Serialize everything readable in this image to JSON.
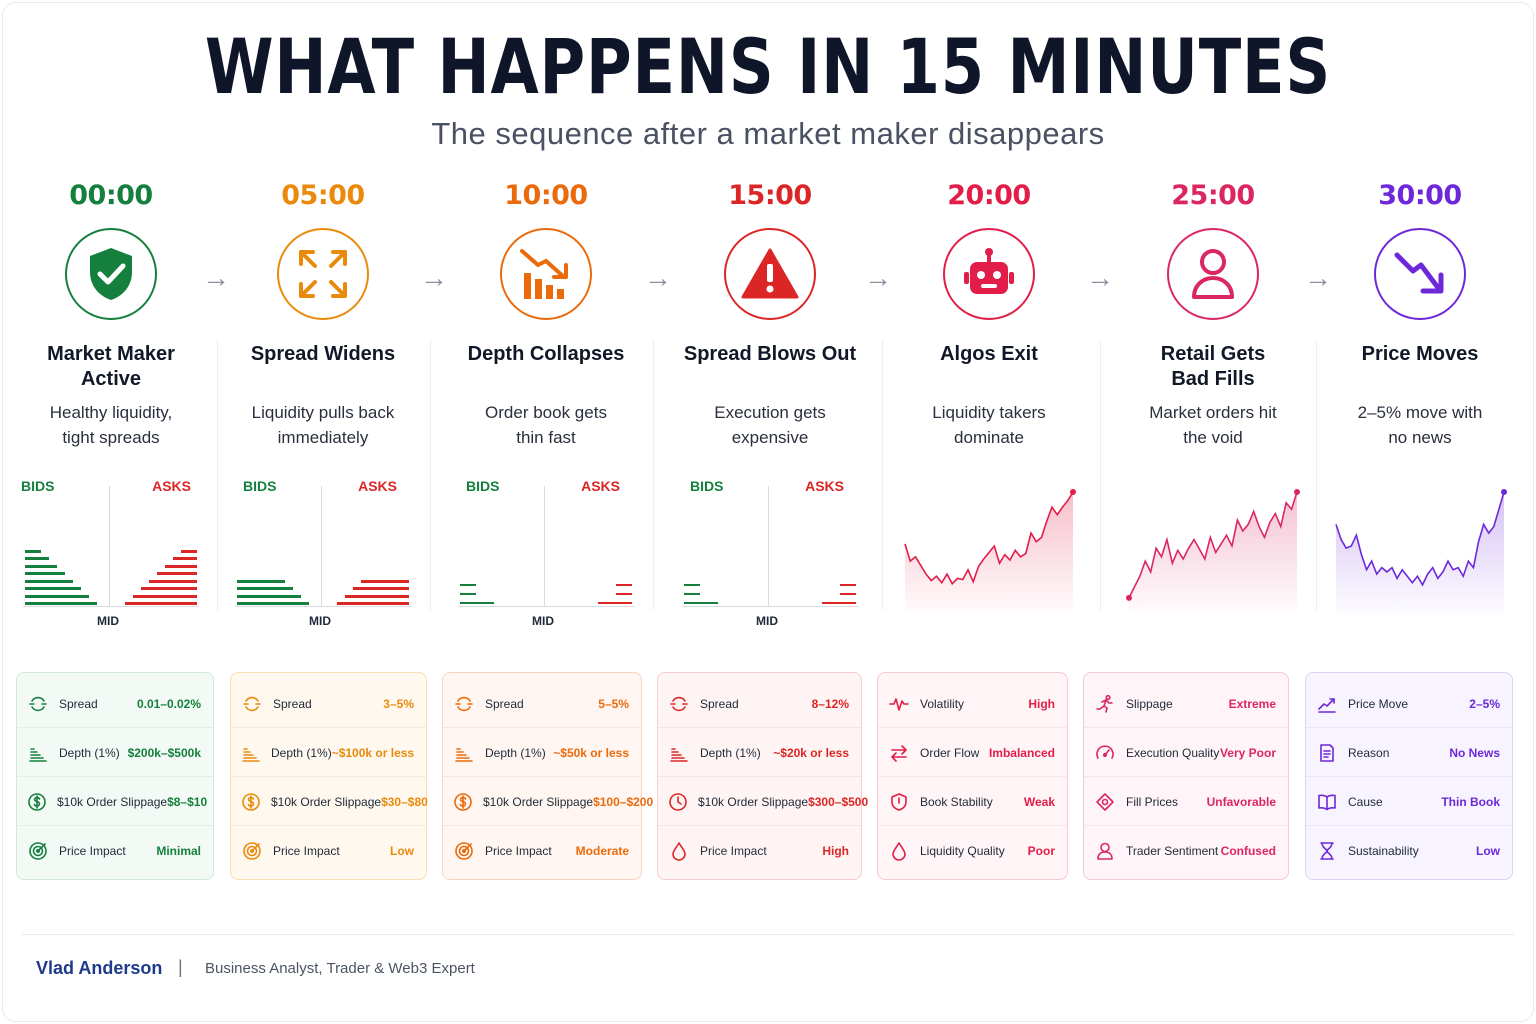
{
  "header": {
    "title": "WHAT HAPPENS IN 15 MINUTES",
    "subtitle": "The sequence after a market maker disappears"
  },
  "depth_labels": {
    "bids": "BIDS",
    "asks": "ASKS",
    "mid": "MID"
  },
  "stages": [
    {
      "time": "00:00",
      "color": "#15803d",
      "icon": "shield-check-icon",
      "title_line1": "Market Maker",
      "title_line2": "Active",
      "desc_line1": "Healthy liquidity,",
      "desc_line2": "tight spreads",
      "book_depth": 8,
      "metrics": [
        {
          "icon": "spread-icon",
          "label": "Spread",
          "value": "0.01–0.02%"
        },
        {
          "icon": "depth-icon",
          "label": "Depth (1%)",
          "value": "$200k–$500k"
        },
        {
          "icon": "dollar-icon",
          "label": "$10k Order Slippage",
          "value": "$8–$10"
        },
        {
          "icon": "target-icon",
          "label": "Price Impact",
          "value": "Minimal"
        }
      ]
    },
    {
      "time": "05:00",
      "color": "#ea8a0c",
      "icon": "expand-arrows-icon",
      "title_line1": "Spread Widens",
      "title_line2": "",
      "desc_line1": "Liquidity pulls back",
      "desc_line2": "immediately",
      "book_depth": 4,
      "metrics": [
        {
          "icon": "spread-icon",
          "label": "Spread",
          "value": "3–5%"
        },
        {
          "icon": "depth-icon",
          "label": "Depth (1%)",
          "value": "~$100k or less"
        },
        {
          "icon": "dollar-icon",
          "label": "$10k Order Slippage",
          "value": "$30–$80"
        },
        {
          "icon": "target-icon",
          "label": "Price Impact",
          "value": "Low"
        }
      ]
    },
    {
      "time": "10:00",
      "color": "#ea6a0c",
      "icon": "falling-bars-icon",
      "title_line1": "Depth Collapses",
      "title_line2": "",
      "desc_line1": "Order book gets",
      "desc_line2": "thin fast",
      "book_depth": 3,
      "metrics": [
        {
          "icon": "spread-icon",
          "label": "Spread",
          "value": "5–5%"
        },
        {
          "icon": "depth-icon",
          "label": "Depth (1%)",
          "value": "~$50k or less"
        },
        {
          "icon": "dollar-icon",
          "label": "$10k Order Slippage",
          "value": "$100–$200"
        },
        {
          "icon": "target-icon",
          "label": "Price Impact",
          "value": "Moderate"
        }
      ]
    },
    {
      "time": "15:00",
      "color": "#dc2626",
      "icon": "warning-icon",
      "title_line1": "Spread Blows Out",
      "title_line2": "",
      "desc_line1": "Execution gets",
      "desc_line2": "expensive",
      "book_depth": 3,
      "metrics": [
        {
          "icon": "spread-icon",
          "label": "Spread",
          "value": "8–12%"
        },
        {
          "icon": "depth-icon",
          "label": "Depth (1%)",
          "value": "~$20k or less"
        },
        {
          "icon": "clock-icon",
          "label": "$10k Order Slippage",
          "value": "$300–$500"
        },
        {
          "icon": "drop-icon",
          "label": "Price Impact",
          "value": "High"
        }
      ]
    },
    {
      "time": "20:00",
      "color": "#e11d48",
      "icon": "robot-icon",
      "title_line1": "Algos Exit",
      "title_line2": "",
      "desc_line1": "Liquidity takers",
      "desc_line2": "dominate",
      "sparkline": [
        0.52,
        0.36,
        0.4,
        0.32,
        0.24,
        0.18,
        0.22,
        0.16,
        0.24,
        0.15,
        0.2,
        0.19,
        0.28,
        0.17,
        0.31,
        0.38,
        0.44,
        0.5,
        0.34,
        0.42,
        0.37,
        0.46,
        0.4,
        0.43,
        0.62,
        0.54,
        0.58,
        0.73,
        0.86,
        0.79,
        0.86,
        0.92,
        1.0
      ],
      "metrics": [
        {
          "icon": "pulse-icon",
          "label": "Volatility",
          "value": "High"
        },
        {
          "icon": "swap-arrows-icon",
          "label": "Order Flow",
          "value": "Imbalanced"
        },
        {
          "icon": "shield-icon",
          "label": "Book Stability",
          "value": "Weak"
        },
        {
          "icon": "drop-icon",
          "label": "Liquidity Quality",
          "value": "Poor"
        }
      ]
    },
    {
      "time": "25:00",
      "color": "#db2760",
      "icon": "user-icon",
      "title_line1": "Retail Gets",
      "title_line2": "Bad Fills",
      "desc_line1": "Market orders hit",
      "desc_line2": "the void",
      "sparkline": [
        0.02,
        0.12,
        0.22,
        0.36,
        0.26,
        0.48,
        0.4,
        0.56,
        0.34,
        0.46,
        0.38,
        0.48,
        0.56,
        0.47,
        0.38,
        0.58,
        0.44,
        0.52,
        0.6,
        0.5,
        0.74,
        0.64,
        0.7,
        0.82,
        0.68,
        0.58,
        0.72,
        0.8,
        0.68,
        0.9,
        0.84,
        1.0
      ],
      "metrics": [
        {
          "icon": "runner-icon",
          "label": "Slippage",
          "value": "Extreme"
        },
        {
          "icon": "gauge-icon",
          "label": "Execution Quality",
          "value": "Very Poor"
        },
        {
          "icon": "tag-icon",
          "label": "Fill Prices",
          "value": "Unfavorable"
        },
        {
          "icon": "user-icon",
          "label": "Trader Sentiment",
          "value": "Confused"
        }
      ]
    },
    {
      "time": "30:00",
      "color": "#6d28d9",
      "icon": "down-trend-icon",
      "title_line1": "Price Moves",
      "title_line2": "",
      "desc_line1": "2–5% move with",
      "desc_line2": "no news",
      "sparkline": [
        0.7,
        0.56,
        0.48,
        0.5,
        0.6,
        0.42,
        0.28,
        0.36,
        0.24,
        0.3,
        0.26,
        0.3,
        0.2,
        0.28,
        0.22,
        0.16,
        0.22,
        0.14,
        0.24,
        0.3,
        0.2,
        0.26,
        0.36,
        0.28,
        0.3,
        0.22,
        0.36,
        0.3,
        0.54,
        0.7,
        0.62,
        0.68,
        0.84,
        1.0
      ],
      "metrics": [
        {
          "icon": "trend-up-icon",
          "label": "Price Move",
          "value": "2–5%"
        },
        {
          "icon": "document-icon",
          "label": "Reason",
          "value": "No News"
        },
        {
          "icon": "book-icon",
          "label": "Cause",
          "value": "Thin Book"
        },
        {
          "icon": "hourglass-icon",
          "label": "Sustainability",
          "value": "Low"
        }
      ]
    }
  ],
  "footer": {
    "author": "Vlad Anderson",
    "separator": "|",
    "role": "Business Analyst, Trader & Web3 Expert"
  }
}
